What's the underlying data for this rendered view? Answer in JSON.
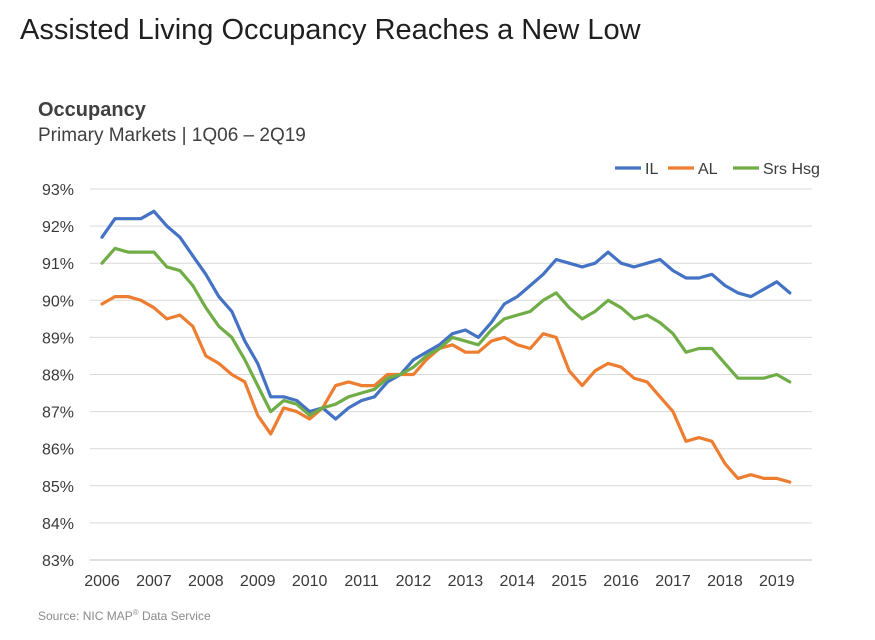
{
  "title": "Assisted Living Occupancy Reaches a New Low",
  "subtitle_bold": "Occupancy",
  "subtitle": "Primary Markets | 1Q06 – 2Q19",
  "source": {
    "prefix": "Source: NIC MAP",
    "sup": "®",
    "suffix": " Data Service"
  },
  "colors": {
    "IL": "#4472C4",
    "AL": "#ED7D31",
    "Srs Hsg": "#70AD47",
    "grid": "#d9d9d9",
    "axis": "#bfbfbf"
  },
  "chart_data": {
    "type": "line",
    "x_start_year": 2006,
    "quarters_per_year": 4,
    "xlabel": "",
    "ylabel": "",
    "x_tick_labels": [
      "2006",
      "2007",
      "2008",
      "2009",
      "2010",
      "2011",
      "2012",
      "2013",
      "2014",
      "2015",
      "2016",
      "2017",
      "2018",
      "2019"
    ],
    "y_tick_labels": [
      "83%",
      "84%",
      "85%",
      "86%",
      "87%",
      "88%",
      "89%",
      "90%",
      "91%",
      "92%",
      "93%"
    ],
    "ylim": [
      83,
      93
    ],
    "grid": true,
    "legend": "top-right",
    "x_labels_quarters": [
      "1Q06",
      "2Q06",
      "3Q06",
      "4Q06",
      "1Q07",
      "2Q07",
      "3Q07",
      "4Q07",
      "1Q08",
      "2Q08",
      "3Q08",
      "4Q08",
      "1Q09",
      "2Q09",
      "3Q09",
      "4Q09",
      "1Q10",
      "2Q10",
      "3Q10",
      "4Q10",
      "1Q11",
      "2Q11",
      "3Q11",
      "4Q11",
      "1Q12",
      "2Q12",
      "3Q12",
      "4Q12",
      "1Q13",
      "2Q13",
      "3Q13",
      "4Q13",
      "1Q14",
      "2Q14",
      "3Q14",
      "4Q14",
      "1Q15",
      "2Q15",
      "3Q15",
      "4Q15",
      "1Q16",
      "2Q16",
      "3Q16",
      "4Q16",
      "1Q17",
      "2Q17",
      "3Q17",
      "4Q17",
      "1Q18",
      "2Q18",
      "3Q18",
      "4Q18",
      "1Q19",
      "2Q19"
    ],
    "series": [
      {
        "name": "IL",
        "values": [
          91.7,
          92.2,
          92.2,
          92.2,
          92.4,
          92.0,
          91.7,
          91.2,
          90.7,
          90.1,
          89.7,
          88.9,
          88.3,
          87.4,
          87.4,
          87.3,
          87.0,
          87.1,
          86.8,
          87.1,
          87.3,
          87.4,
          87.8,
          88.0,
          88.4,
          88.6,
          88.8,
          89.1,
          89.2,
          89.0,
          89.4,
          89.9,
          90.1,
          90.4,
          90.7,
          91.1,
          91.0,
          90.9,
          91.0,
          91.3,
          91.0,
          90.9,
          91.0,
          91.1,
          90.8,
          90.6,
          90.6,
          90.7,
          90.4,
          90.2,
          90.1,
          90.3,
          90.5,
          90.2
        ]
      },
      {
        "name": "AL",
        "values": [
          89.9,
          90.1,
          90.1,
          90.0,
          89.8,
          89.5,
          89.6,
          89.3,
          88.5,
          88.3,
          88.0,
          87.8,
          86.9,
          86.4,
          87.1,
          87.0,
          86.8,
          87.1,
          87.7,
          87.8,
          87.7,
          87.7,
          88.0,
          88.0,
          88.0,
          88.4,
          88.7,
          88.8,
          88.6,
          88.6,
          88.9,
          89.0,
          88.8,
          88.7,
          89.1,
          89.0,
          88.1,
          87.7,
          88.1,
          88.3,
          88.2,
          87.9,
          87.8,
          87.4,
          87.0,
          86.2,
          86.3,
          86.2,
          85.6,
          85.2,
          85.3,
          85.2,
          85.2,
          85.1
        ]
      },
      {
        "name": "Srs Hsg",
        "values": [
          91.0,
          91.4,
          91.3,
          91.3,
          91.3,
          90.9,
          90.8,
          90.4,
          89.8,
          89.3,
          89.0,
          88.4,
          87.7,
          87.0,
          87.3,
          87.2,
          86.9,
          87.1,
          87.2,
          87.4,
          87.5,
          87.6,
          87.9,
          88.0,
          88.2,
          88.5,
          88.7,
          89.0,
          88.9,
          88.8,
          89.2,
          89.5,
          89.6,
          89.7,
          90.0,
          90.2,
          89.8,
          89.5,
          89.7,
          90.0,
          89.8,
          89.5,
          89.6,
          89.4,
          89.1,
          88.6,
          88.7,
          88.7,
          88.3,
          87.9,
          87.9,
          87.9,
          88.0,
          87.8
        ]
      }
    ]
  }
}
